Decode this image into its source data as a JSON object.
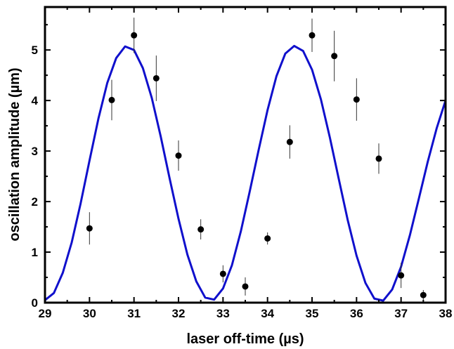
{
  "chart_data": {
    "type": "scatter",
    "xlabel": "laser off-time (µs)",
    "ylabel": "oscillation amplitude (µm)",
    "xlim": [
      29,
      38
    ],
    "ylim": [
      0,
      5.85
    ],
    "x_ticks": [
      "29",
      "30",
      "31",
      "32",
      "33",
      "34",
      "35",
      "36",
      "37",
      "38"
    ],
    "y_ticks": [
      "0",
      "1",
      "2",
      "3",
      "4",
      "5"
    ],
    "grid": false,
    "legend": "none",
    "series": [
      {
        "kind": "points_with_error_bars",
        "color": "#000000",
        "points": [
          {
            "x": 30.0,
            "y": 1.47,
            "err": 0.32
          },
          {
            "x": 30.5,
            "y": 4.01,
            "err": 0.4
          },
          {
            "x": 31.0,
            "y": 5.29,
            "err": 0.35
          },
          {
            "x": 31.5,
            "y": 4.44,
            "err": 0.45
          },
          {
            "x": 32.0,
            "y": 2.91,
            "err": 0.3
          },
          {
            "x": 32.5,
            "y": 1.45,
            "err": 0.2
          },
          {
            "x": 33.0,
            "y": 0.57,
            "err": 0.17
          },
          {
            "x": 33.5,
            "y": 0.32,
            "err": 0.18
          },
          {
            "x": 34.0,
            "y": 1.27,
            "err": 0.12
          },
          {
            "x": 34.5,
            "y": 3.18,
            "err": 0.33
          },
          {
            "x": 35.0,
            "y": 5.29,
            "err": 0.33
          },
          {
            "x": 35.5,
            "y": 4.88,
            "err": 0.5
          },
          {
            "x": 36.0,
            "y": 4.02,
            "err": 0.42
          },
          {
            "x": 36.5,
            "y": 2.85,
            "err": 0.3
          },
          {
            "x": 37.0,
            "y": 0.54,
            "err": 0.25
          },
          {
            "x": 37.5,
            "y": 0.15,
            "err": 0.1
          }
        ]
      },
      {
        "kind": "fit_curve",
        "color": "#1010cc",
        "x": [
          29.0,
          29.2,
          29.4,
          29.6,
          29.8,
          30.0,
          30.2,
          30.4,
          30.6,
          30.8,
          31.0,
          31.2,
          31.4,
          31.6,
          31.8,
          32.0,
          32.2,
          32.4,
          32.6,
          32.8,
          33.0,
          33.2,
          33.4,
          33.6,
          33.8,
          34.0,
          34.2,
          34.4,
          34.6,
          34.8,
          35.0,
          35.2,
          35.4,
          35.6,
          35.8,
          36.0,
          36.2,
          36.4,
          36.6,
          36.8,
          37.0,
          37.2,
          37.4,
          37.6,
          37.8,
          38.0
        ],
        "y": [
          0.05,
          0.19,
          0.59,
          1.19,
          1.96,
          2.81,
          3.64,
          4.35,
          4.84,
          5.07,
          5.0,
          4.64,
          4.05,
          3.29,
          2.46,
          1.66,
          0.95,
          0.42,
          0.1,
          0.06,
          0.28,
          0.74,
          1.41,
          2.2,
          3.02,
          3.81,
          4.48,
          4.93,
          5.08,
          4.98,
          4.61,
          4.02,
          3.27,
          2.45,
          1.64,
          0.93,
          0.39,
          0.08,
          0.04,
          0.26,
          0.71,
          1.34,
          2.06,
          2.79,
          3.45,
          4.0
        ]
      }
    ]
  }
}
